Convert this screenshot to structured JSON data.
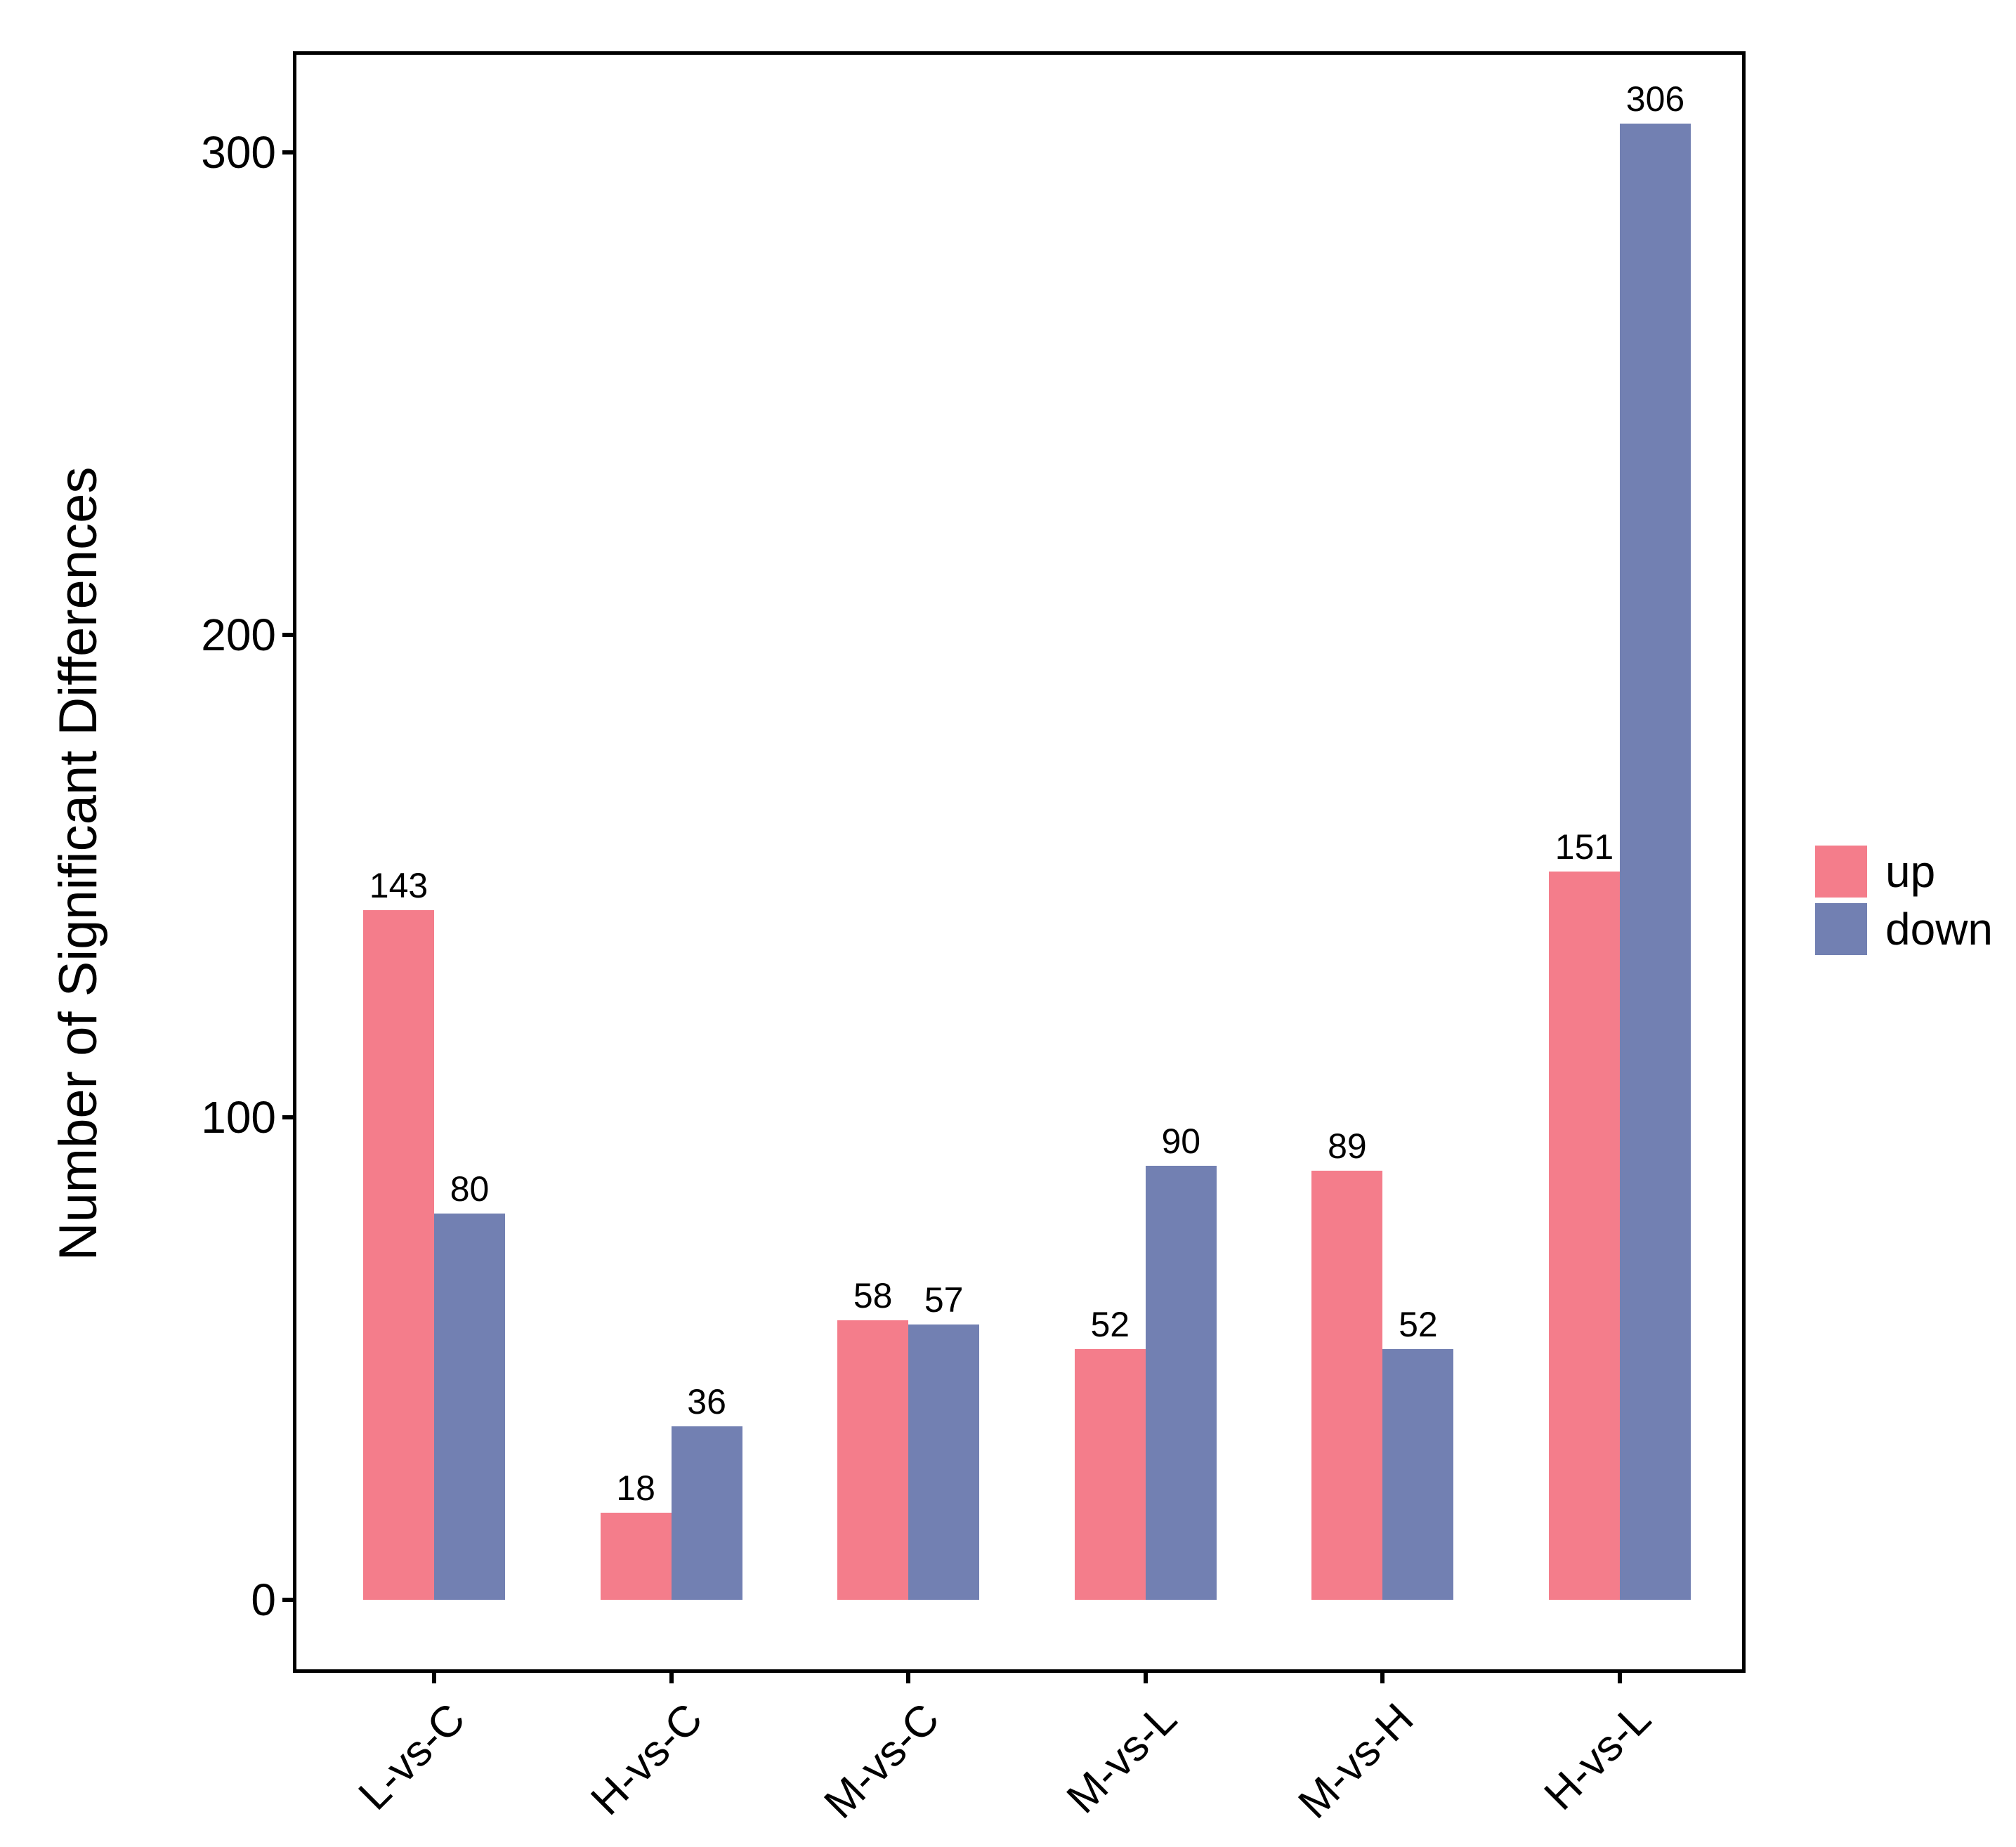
{
  "figure": {
    "background_color": "#ffffff",
    "panel_border_color": "#000000",
    "text_color": "#000000"
  },
  "chart_data": {
    "type": "bar",
    "title": "",
    "xlabel": "",
    "ylabel": "Number of Significant Differences",
    "categories": [
      "L-vs-C",
      "H-vs-C",
      "M-vs-C",
      "M-vs-L",
      "M-vs-H",
      "H-vs-L"
    ],
    "series": [
      {
        "name": "up",
        "color": "#F47D8B",
        "values": [
          143,
          18,
          58,
          52,
          89,
          151
        ]
      },
      {
        "name": "down",
        "color": "#7280B2",
        "values": [
          80,
          36,
          57,
          90,
          52,
          306
        ]
      }
    ],
    "bar_value_labels": {
      "up": [
        "143",
        "18",
        "58",
        "52",
        "89",
        "151"
      ],
      "down": [
        "80",
        "36",
        "57",
        "90",
        "52",
        "306"
      ]
    },
    "y_ticks": [
      "0",
      "100",
      "200",
      "300"
    ],
    "y_tick_values": [
      0,
      100,
      200,
      300
    ],
    "ylim": [
      0,
      321
    ],
    "grid": false,
    "legend_position": "right",
    "legend_entries": [
      "up",
      "down"
    ]
  }
}
